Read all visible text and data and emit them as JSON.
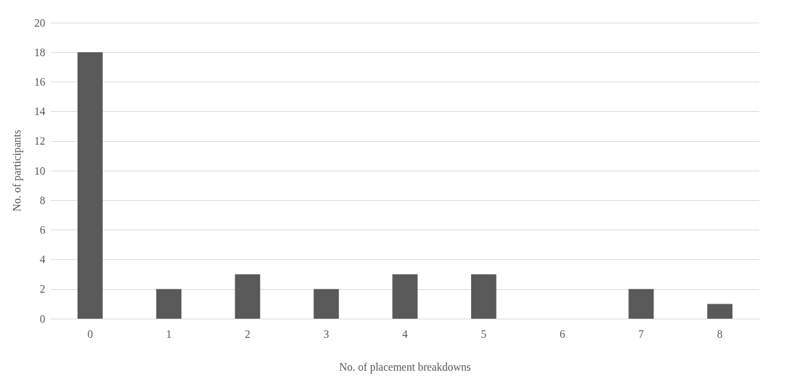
{
  "chart_data": {
    "type": "bar",
    "xlabel": "No. of placement breakdowns",
    "ylabel": "No. of participants",
    "categories": [
      "0",
      "1",
      "2",
      "3",
      "4",
      "5",
      "6",
      "7",
      "8"
    ],
    "values": [
      18,
      2,
      3,
      2,
      3,
      3,
      0,
      2,
      1
    ],
    "color": "#595959",
    "ylim": [
      0,
      20
    ],
    "yticks": [
      0,
      2,
      4,
      6,
      8,
      10,
      12,
      14,
      16,
      18,
      20
    ],
    "grid": "y"
  }
}
